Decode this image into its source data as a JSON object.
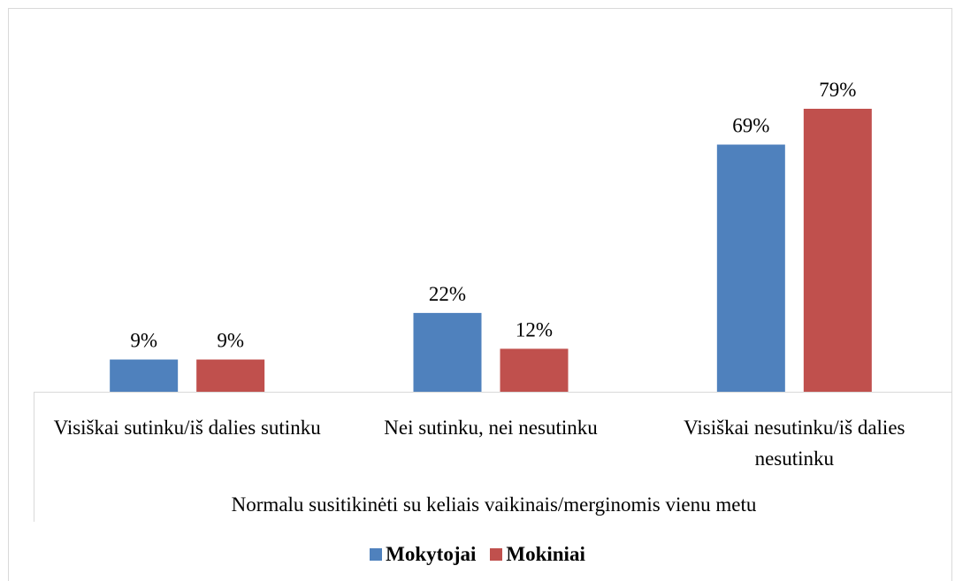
{
  "chart_data": {
    "type": "bar",
    "categories": [
      "Visiškai sutinku/iš dalies sutinku",
      "Nei sutinku, nei nesutinku",
      "Visiškai nesutinku/iš dalies nesutinku"
    ],
    "x_label": "Normalu susitikinėti su keliais vaikinais/merginomis vienu metu",
    "series": [
      {
        "name": "Mokytojai",
        "color": "#4f81bd",
        "values": [
          9,
          22,
          69
        ],
        "value_labels": [
          "9%",
          "22%",
          "69%"
        ]
      },
      {
        "name": "Mokiniai",
        "color": "#c0504d",
        "values": [
          9,
          12,
          79
        ],
        "value_labels": [
          "9%",
          "12%",
          "79%"
        ]
      }
    ],
    "legend": "bottom"
  }
}
